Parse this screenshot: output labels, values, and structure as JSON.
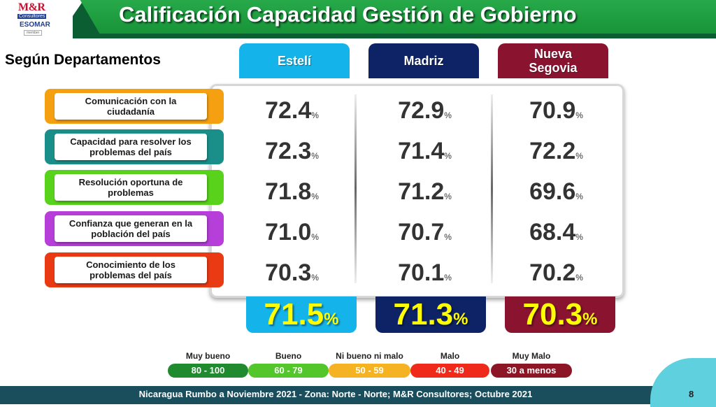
{
  "header": {
    "title": "Calificación Capacidad Gestión de Gobierno",
    "logo_main": "M&R",
    "logo_sub": "Consultores",
    "logo_esomar": "ESOMAR",
    "logo_member": "member"
  },
  "subtitle": "Según Departamentos",
  "columns": [
    "Estelí",
    "Madriz",
    "Nueva Segovia"
  ],
  "colors": {
    "esteli": "#14b4ea",
    "madriz": "#0e2366",
    "nueva_segovia": "#8a1430",
    "header_green": "#1f9e40",
    "footer": "#1a4e5c"
  },
  "rows": [
    {
      "label": "Comunicación con la ciudadanía",
      "values": [
        "72.4",
        "72.9",
        "70.9"
      ],
      "color": "#f5a011"
    },
    {
      "label": "Capacidad para resolver los problemas del país",
      "values": [
        "72.3",
        "71.4",
        "72.2"
      ],
      "color": "#1a8f8a"
    },
    {
      "label": "Resolución oportuna de problemas",
      "values": [
        "71.8",
        "71.2",
        "69.6"
      ],
      "color": "#58d21b"
    },
    {
      "label": "Confianza que generan en la población del país",
      "values": [
        "71.0",
        "70.7",
        "68.4"
      ],
      "color": "#b53fd8"
    },
    {
      "label": "Conocimiento de los problemas del país",
      "values": [
        "70.3",
        "70.1",
        "70.2"
      ],
      "color": "#ea3a14"
    }
  ],
  "percent_sign": "%",
  "totals": [
    "71.5",
    "71.3",
    "70.3"
  ],
  "legend": [
    {
      "label": "Muy bueno",
      "range": "80 - 100",
      "color": "#1f8a2e"
    },
    {
      "label": "Bueno",
      "range": "60 - 79",
      "color": "#52c62a"
    },
    {
      "label": "Ni bueno ni malo",
      "range": "50 - 59",
      "color": "#f5b323"
    },
    {
      "label": "Malo",
      "range": "40 - 49",
      "color": "#f02a1a"
    },
    {
      "label": "Muy Malo",
      "range": "30 a menos",
      "color": "#8c1526"
    }
  ],
  "footer": {
    "text": "Nicaragua Rumbo a Noviembre 2021 - Zona: Norte - Norte; M&R Consultores; Octubre 2021",
    "page": "8"
  }
}
